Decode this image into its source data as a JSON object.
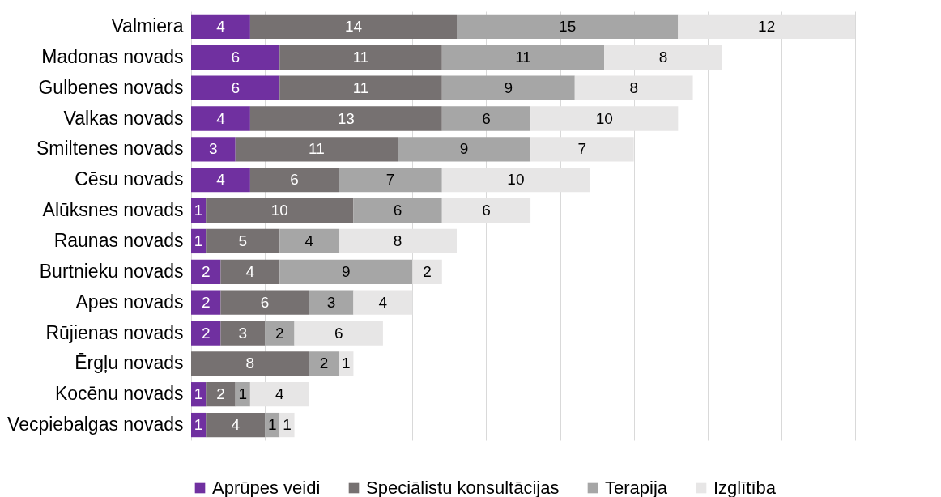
{
  "chart_data": {
    "type": "bar",
    "orientation": "horizontal",
    "stacked": true,
    "data_labels": true,
    "grid": "x",
    "legend": "bottom",
    "tick_labels": "y",
    "categories": [
      "Valmiera",
      "Madonas novads",
      "Gulbenes novads",
      "Valkas novads",
      "Smiltenes novads",
      "Cēsu novads",
      "Alūksnes novads",
      "Raunas novads",
      "Burtnieku novads",
      "Apes novads",
      "Rūjienas novads",
      "Ērgļu novads",
      "Kocēnu novads",
      "Vecpiebalgas novads"
    ],
    "xlim": [
      0,
      45
    ],
    "xticks": [
      {
        "value": 0,
        "label": null
      },
      {
        "value": 5,
        "label": null
      },
      {
        "value": 10,
        "label": null
      },
      {
        "value": 15,
        "label": null
      },
      {
        "value": 20,
        "label": null
      },
      {
        "value": 25,
        "label": null
      },
      {
        "value": 30,
        "label": null
      },
      {
        "value": 35,
        "label": null
      },
      {
        "value": 40,
        "label": null
      },
      {
        "value": 45,
        "label": null
      }
    ],
    "series": [
      {
        "name": "Aprūpes veidi",
        "color": "#7030a0",
        "values": [
          4,
          6,
          6,
          4,
          3,
          4,
          1,
          1,
          2,
          2,
          2,
          null,
          1,
          1
        ]
      },
      {
        "name": "Speciālistu konsultācijas",
        "color": "#767171",
        "values": [
          14,
          11,
          11,
          13,
          11,
          6,
          10,
          5,
          4,
          6,
          3,
          8,
          2,
          4
        ]
      },
      {
        "name": "Terapija",
        "color": "#a6a6a6",
        "values": [
          15,
          11,
          9,
          6,
          9,
          7,
          6,
          4,
          9,
          3,
          2,
          2,
          1,
          1
        ]
      },
      {
        "name": "Izglītība",
        "color": "#e7e6e6",
        "values": [
          12,
          8,
          8,
          10,
          7,
          10,
          6,
          8,
          2,
          4,
          6,
          1,
          4,
          1
        ]
      }
    ]
  }
}
